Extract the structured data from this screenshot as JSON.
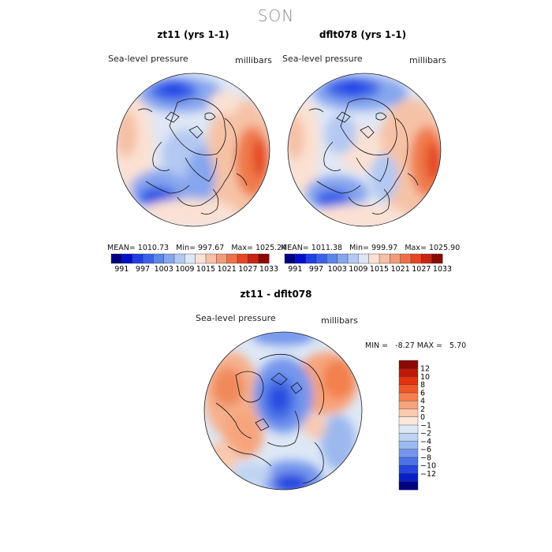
{
  "season": "SON",
  "panels": [
    {
      "title": "zt11 (yrs 1-1)",
      "field_label": "Sea-level pressure",
      "units": "millibars",
      "stats": {
        "mean": "1010.73",
        "min": "997.67",
        "max": "1025.24"
      }
    },
    {
      "title": "dflt078 (yrs 1-1)",
      "field_label": "Sea-level pressure",
      "units": "millibars",
      "stats": {
        "mean": "1011.38",
        "min": "999.97",
        "max": "1025.90"
      }
    }
  ],
  "stat_labels": {
    "mean": "MEAN=",
    "min": "Min=",
    "max": "Max=",
    "min_caps": "MIN =",
    "max_caps": "MAX ="
  },
  "colorbar_abs": {
    "ticks": [
      "991",
      "997",
      "1003",
      "1009",
      "1015",
      "1021",
      "1027",
      "1033"
    ],
    "colors": [
      "#000080",
      "#0010c8",
      "#1f3fe6",
      "#3a62e8",
      "#5b86ea",
      "#86a6ee",
      "#b3c8f2",
      "#dce6f7",
      "#fbe1d3",
      "#f6c0a4",
      "#f39b78",
      "#ef6f48",
      "#e64724",
      "#c82412",
      "#8a0a06"
    ]
  },
  "diff_panel": {
    "title": "zt11 - dflt078",
    "field_label": "Sea-level pressure",
    "units": "millibars",
    "stats": {
      "min": "-8.27",
      "max": "5.70"
    }
  },
  "colorbar_diff": {
    "ticks": [
      "12",
      "10",
      "8",
      "6",
      "4",
      "2",
      "0",
      "−1",
      "−2",
      "−4",
      "−6",
      "−8",
      "−10",
      "−12"
    ],
    "colors": [
      "#8a0a06",
      "#c01808",
      "#e2320e",
      "#f0562a",
      "#f3804e",
      "#f7a47c",
      "#fac9b0",
      "#fbe8dc",
      "#dde8f6",
      "#bfd4f2",
      "#9bb8ef",
      "#7496ec",
      "#4a72e6",
      "#2746df",
      "#0a1ec8",
      "#000080"
    ]
  }
}
